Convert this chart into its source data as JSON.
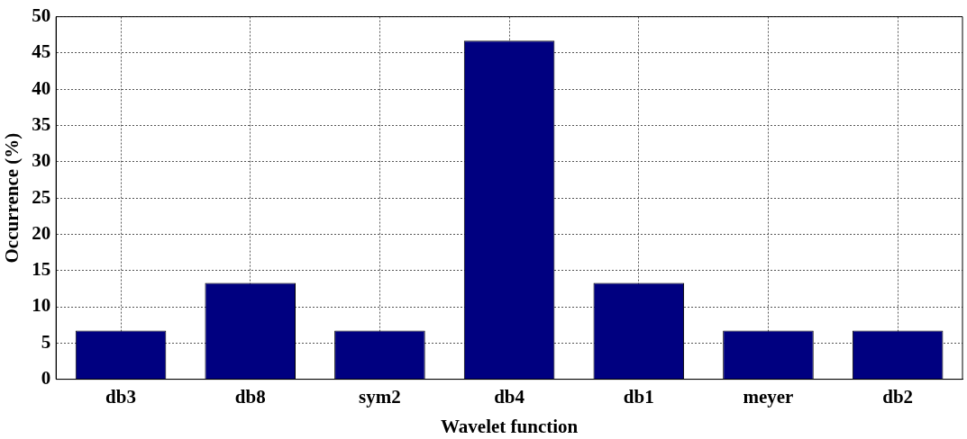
{
  "chart_data": {
    "type": "bar",
    "xlabel": "Wavelet function",
    "ylabel": "Occurrence (%)",
    "categories": [
      "db3",
      "db8",
      "sym2",
      "db4",
      "db1",
      "meyer",
      "db2"
    ],
    "values": [
      6.7,
      13.3,
      6.7,
      46.7,
      13.3,
      6.7,
      6.7
    ],
    "color": "#000080",
    "ylim": [
      0,
      50
    ],
    "yticks": [
      0,
      5,
      10,
      15,
      20,
      25,
      30,
      35,
      40,
      45,
      50
    ],
    "grid": true,
    "legend": false
  }
}
